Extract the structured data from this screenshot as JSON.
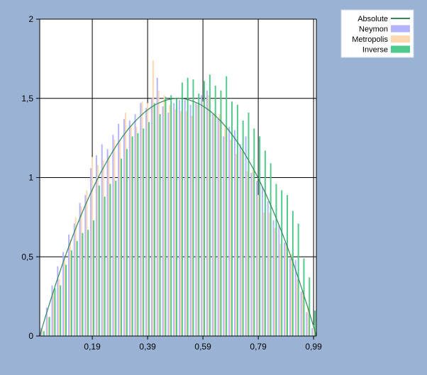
{
  "colors": {
    "background": "#9ab3d5",
    "plot_background": "#ffffff",
    "grid": "#000000",
    "absolute": "#2e8b57",
    "neymon": "#b4b4ff",
    "metropolis": "#ffd8b0",
    "inverse": "#4fc98c"
  },
  "chart_data": {
    "type": "bar",
    "title": "",
    "xlabel": "",
    "ylabel": "",
    "xlim": [
      0.0,
      1.0
    ],
    "ylim": [
      0,
      2
    ],
    "x_ticks": [
      0.19,
      0.39,
      0.59,
      0.79,
      0.99
    ],
    "x_tick_labels": [
      "0,19",
      "0,39",
      "0,59",
      "0,79",
      "0,99"
    ],
    "y_ticks": [
      0,
      0.5,
      1,
      1.5,
      2
    ],
    "y_tick_labels": [
      "0",
      "0,5",
      "1",
      "1,5",
      "2"
    ],
    "grid": true,
    "legend_position": "top-right",
    "bin_width": 0.02,
    "bin_centers": [
      0.01,
      0.03,
      0.05,
      0.07,
      0.09,
      0.11,
      0.13,
      0.15,
      0.17,
      0.19,
      0.21,
      0.23,
      0.25,
      0.27,
      0.29,
      0.31,
      0.33,
      0.35,
      0.37,
      0.39,
      0.41,
      0.43,
      0.45,
      0.47,
      0.49,
      0.51,
      0.53,
      0.55,
      0.57,
      0.59,
      0.61,
      0.63,
      0.65,
      0.67,
      0.69,
      0.71,
      0.73,
      0.75,
      0.77,
      0.79,
      0.81,
      0.83,
      0.85,
      0.87,
      0.89,
      0.91,
      0.93,
      0.95,
      0.97,
      0.99
    ],
    "series": [
      {
        "name": "Absolute",
        "type": "line",
        "color_key": "absolute",
        "x": [
          0.0,
          0.02,
          0.04,
          0.06,
          0.08,
          0.1,
          0.12,
          0.14,
          0.16,
          0.18,
          0.2,
          0.22,
          0.24,
          0.26,
          0.28,
          0.3,
          0.32,
          0.34,
          0.36,
          0.38,
          0.4,
          0.42,
          0.44,
          0.46,
          0.48,
          0.5,
          0.52,
          0.54,
          0.56,
          0.58,
          0.6,
          0.62,
          0.64,
          0.66,
          0.68,
          0.7,
          0.72,
          0.74,
          0.76,
          0.78,
          0.8,
          0.82,
          0.84,
          0.86,
          0.88,
          0.9,
          0.92,
          0.94,
          0.96,
          0.98,
          1.0
        ],
        "values": [
          0.0,
          0.118,
          0.23,
          0.338,
          0.442,
          0.54,
          0.634,
          0.722,
          0.806,
          0.886,
          0.96,
          1.03,
          1.094,
          1.154,
          1.21,
          1.26,
          1.306,
          1.346,
          1.382,
          1.414,
          1.44,
          1.462,
          1.478,
          1.49,
          1.498,
          1.5,
          1.498,
          1.49,
          1.478,
          1.462,
          1.44,
          1.414,
          1.382,
          1.346,
          1.306,
          1.26,
          1.21,
          1.154,
          1.094,
          1.03,
          0.96,
          0.886,
          0.806,
          0.722,
          0.634,
          0.54,
          0.442,
          0.338,
          0.23,
          0.118,
          0.0
        ]
      },
      {
        "name": "Neymon",
        "type": "bar",
        "color_key": "neymon",
        "values": [
          0.05,
          0.18,
          0.32,
          0.44,
          0.53,
          0.64,
          0.71,
          0.84,
          0.89,
          1.06,
          1.14,
          1.21,
          1.18,
          1.27,
          1.34,
          1.37,
          1.36,
          1.4,
          1.47,
          1.44,
          1.5,
          1.63,
          1.45,
          1.41,
          1.47,
          1.49,
          1.49,
          1.46,
          1.47,
          1.52,
          1.55,
          1.4,
          1.37,
          1.26,
          1.32,
          1.3,
          1.21,
          1.26,
          1.03,
          0.98,
          0.94,
          0.85,
          0.73,
          0.7,
          0.59,
          0.49,
          0.48,
          0.28,
          0.15,
          0.05
        ]
      },
      {
        "name": "Metropolis",
        "type": "bar",
        "color_key": "metropolis",
        "values": [
          0.04,
          0.12,
          0.28,
          0.36,
          0.48,
          0.61,
          0.75,
          0.82,
          0.92,
          1.13,
          1.08,
          1.11,
          1.14,
          1.24,
          1.23,
          1.41,
          1.33,
          1.32,
          1.48,
          1.47,
          1.74,
          1.55,
          1.52,
          1.46,
          1.43,
          1.42,
          1.42,
          1.39,
          1.46,
          1.48,
          1.52,
          1.41,
          1.4,
          1.32,
          1.24,
          1.15,
          1.17,
          1.04,
          1.05,
          0.89,
          0.78,
          0.78,
          0.68,
          0.58,
          0.58,
          0.52,
          0.36,
          0.29,
          0.19,
          0.07
        ]
      },
      {
        "name": "Inverse",
        "type": "bar",
        "color_key": "inverse",
        "values": [
          0.03,
          0.12,
          0.3,
          0.32,
          0.45,
          0.54,
          0.6,
          0.65,
          0.67,
          0.73,
          0.95,
          0.88,
          0.96,
          0.98,
          1.12,
          1.18,
          1.26,
          1.28,
          1.31,
          1.35,
          1.47,
          1.4,
          1.51,
          1.52,
          1.5,
          1.6,
          1.63,
          1.62,
          1.53,
          1.61,
          1.65,
          1.58,
          1.55,
          1.64,
          1.48,
          1.46,
          1.36,
          1.41,
          1.31,
          1.26,
          1.17,
          1.09,
          0.96,
          0.92,
          0.89,
          0.79,
          0.71,
          0.49,
          0.37,
          0.16
        ]
      }
    ]
  }
}
